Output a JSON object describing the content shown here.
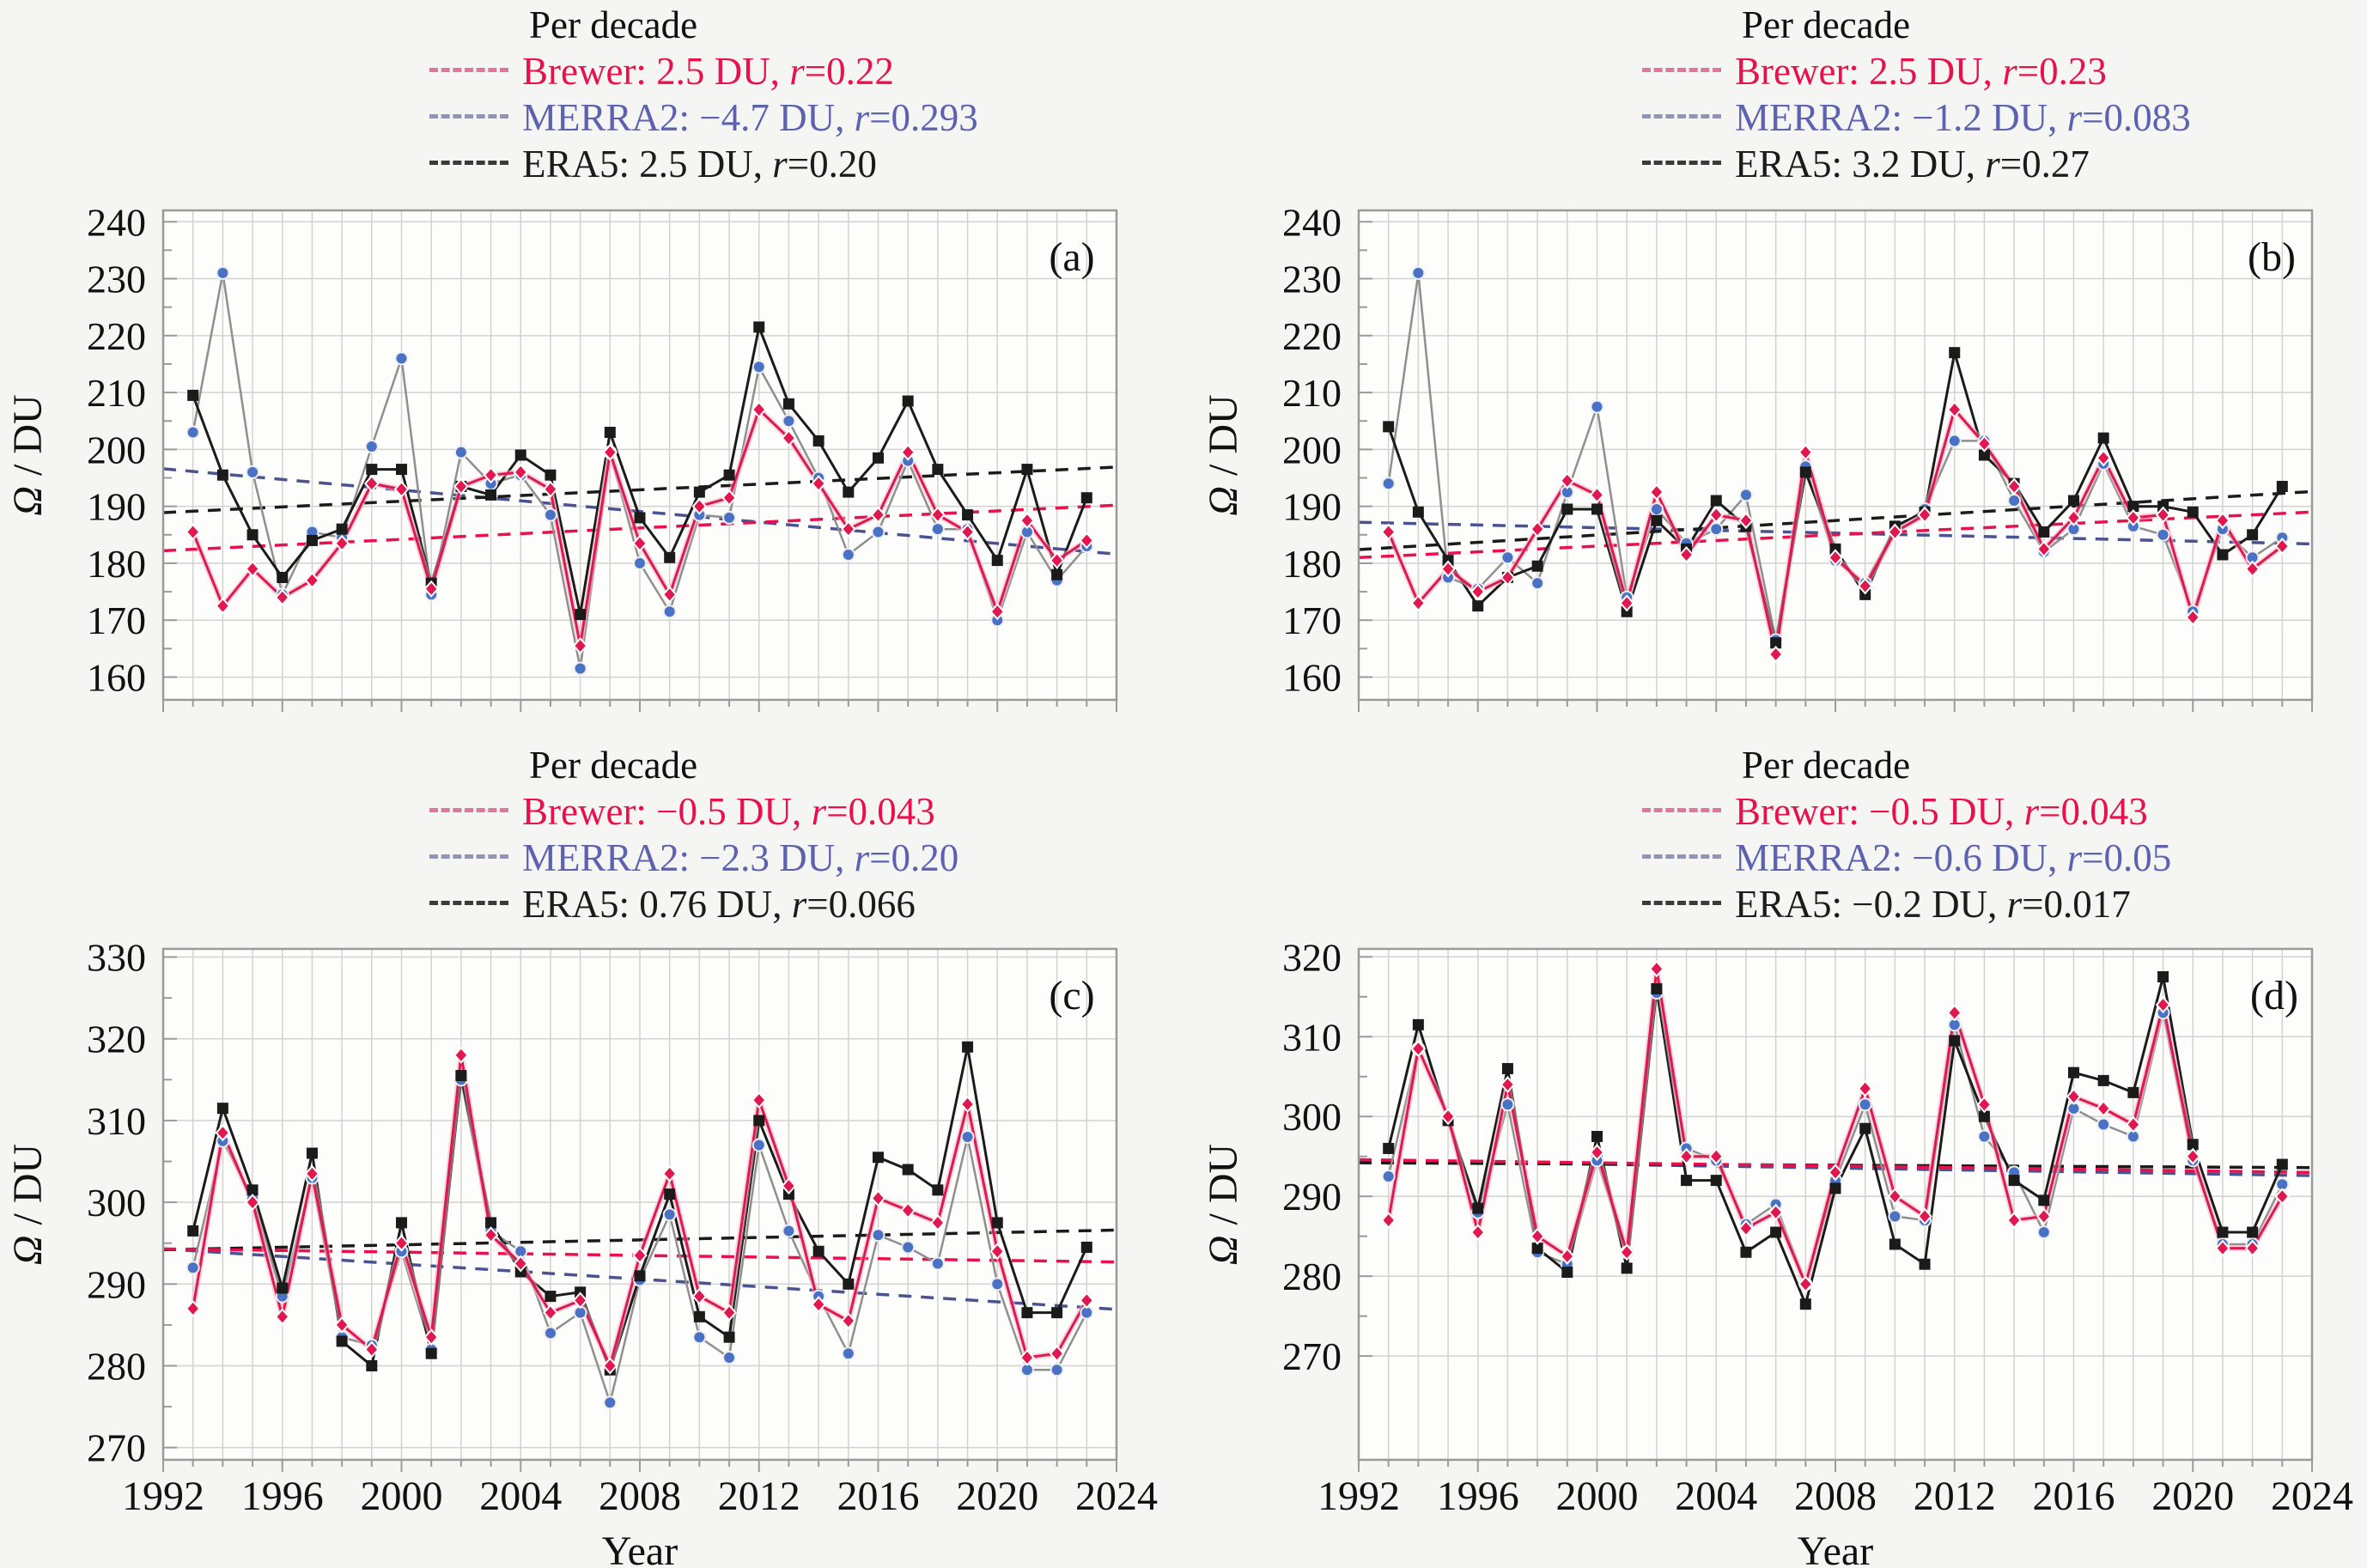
{
  "figure": {
    "background": "#f5f5f3",
    "plot_background": "#fdfdfc",
    "grid_color": "#d2d2d2",
    "frame_color": "#9a9a9a",
    "text_color": "#111111",
    "ylabel_omega": "Ω",
    "ylabel_rest": " / DU",
    "xlabel": "Year",
    "years": [
      1993,
      1994,
      1995,
      1996,
      1997,
      1998,
      1999,
      2000,
      2001,
      2002,
      2003,
      2004,
      2005,
      2006,
      2007,
      2008,
      2009,
      2010,
      2011,
      2012,
      2013,
      2014,
      2015,
      2016,
      2017,
      2018,
      2019,
      2020,
      2021,
      2022,
      2023
    ],
    "series_colors": {
      "brewer_line": "#dc1a4e",
      "brewer_halo": "#f5b5ca",
      "brewer_marker": "#e1174f",
      "merra2_line": "#8f8f8f",
      "merra2_marker": "#4a72c4",
      "era5_line": "#1b1b1b",
      "era5_marker": "#1b1b1b",
      "trend_brewer": "#e8114d",
      "trend_merra2": "#4a5390",
      "trend_era5": "#1b1b1b"
    }
  },
  "chart_data": [
    {
      "type": "line",
      "label": "(a)",
      "xlim": [
        1992,
        2024
      ],
      "ylim": [
        156,
        242
      ],
      "yticks": [
        160,
        170,
        180,
        190,
        200,
        210,
        220,
        230,
        240
      ],
      "xticks": [
        1992,
        1996,
        2000,
        2004,
        2008,
        2012,
        2016,
        2020,
        2024
      ],
      "legend": {
        "title": "Per decade",
        "entries": [
          {
            "series": "brewer",
            "text": "Brewer: 2.5 DU, ",
            "r": "r",
            "rv": "=0.22",
            "color": "#e8114d",
            "dash": "#e0779a"
          },
          {
            "series": "merra2",
            "text": "MERRA2: −4.7 DU, ",
            "r": "r",
            "rv": "=0.293",
            "color": "#5c61b0",
            "dash": "#9094b8"
          },
          {
            "series": "era5",
            "text": "ERA5: 2.5 DU, ",
            "r": "r",
            "rv": "=0.20",
            "color": "#1b1b1b",
            "dash": "#3a3a3a"
          }
        ]
      },
      "series": [
        {
          "name": "MERRA2",
          "key": "merra2",
          "values": [
            203,
            231,
            196,
            174.5,
            185.5,
            184.5,
            200.5,
            216,
            174.5,
            199.5,
            194,
            195.5,
            188.5,
            161.5,
            199.5,
            180,
            171.5,
            188.5,
            188,
            214.5,
            205,
            195,
            181.5,
            185.5,
            198,
            186,
            186,
            170,
            185.5,
            177,
            183
          ],
          "trend": [
            196.6,
            181.6
          ]
        },
        {
          "name": "ERA5",
          "key": "era5",
          "values": [
            209.5,
            195.5,
            185,
            177.5,
            184,
            186,
            196.5,
            196.5,
            176.5,
            193.5,
            192,
            199,
            195.5,
            171,
            203,
            188,
            181,
            192.5,
            195.5,
            221.5,
            208,
            201.5,
            192.5,
            198.5,
            208.5,
            196.5,
            188.5,
            180.5,
            196.5,
            178,
            191.5
          ],
          "trend": [
            188.9,
            196.9
          ]
        },
        {
          "name": "Brewer",
          "key": "brewer",
          "values": [
            185.5,
            172.5,
            179,
            174,
            177,
            183.5,
            194,
            193,
            175.5,
            193.5,
            195.5,
            196,
            193,
            165.5,
            199.5,
            183.5,
            174.5,
            190,
            191.5,
            207,
            202,
            194,
            186,
            188.5,
            199.5,
            188.5,
            185.5,
            171.5,
            187.5,
            180.5,
            184
          ],
          "trend": [
            182.2,
            190.2
          ]
        }
      ]
    },
    {
      "type": "line",
      "label": "(b)",
      "xlim": [
        1992,
        2024
      ],
      "ylim": [
        156,
        242
      ],
      "yticks": [
        160,
        170,
        180,
        190,
        200,
        210,
        220,
        230,
        240
      ],
      "xticks": [
        1992,
        1996,
        2000,
        2004,
        2008,
        2012,
        2016,
        2020,
        2024
      ],
      "legend": {
        "title": "Per decade",
        "entries": [
          {
            "series": "brewer",
            "text": "Brewer: 2.5 DU, ",
            "r": "r",
            "rv": "=0.23",
            "color": "#e8114d",
            "dash": "#e0779a"
          },
          {
            "series": "merra2",
            "text": "MERRA2: −1.2 DU, ",
            "r": "r",
            "rv": "=0.083",
            "color": "#5c61b0",
            "dash": "#9094b8"
          },
          {
            "series": "era5",
            "text": "ERA5: 3.2 DU, ",
            "r": "r",
            "rv": "=0.27",
            "color": "#1b1b1b",
            "dash": "#3a3a3a"
          }
        ]
      },
      "series": [
        {
          "name": "MERRA2",
          "key": "merra2",
          "values": [
            194,
            231,
            177.5,
            175.5,
            181,
            176.5,
            192.5,
            207.5,
            174,
            189.5,
            183.5,
            186,
            192,
            166.5,
            197,
            180.5,
            176.5,
            186,
            189.5,
            201.5,
            201.5,
            191,
            182,
            186,
            197.5,
            186.5,
            185,
            171.5,
            186,
            181,
            184.5
          ],
          "trend": [
            187.2,
            183.4
          ]
        },
        {
          "name": "ERA5",
          "key": "era5",
          "values": [
            204,
            189,
            180.5,
            172.5,
            177.5,
            179.5,
            189.5,
            189.5,
            171.5,
            187.5,
            182.5,
            191,
            186.5,
            166,
            196,
            182.5,
            174.5,
            186.5,
            189,
            217,
            199,
            194,
            185.5,
            191,
            202,
            190,
            190,
            189,
            181.5,
            185,
            193.5
          ],
          "trend": [
            182.4,
            192.6
          ]
        },
        {
          "name": "Brewer",
          "key": "brewer",
          "values": [
            185.5,
            173,
            179,
            175,
            177.5,
            186,
            194.5,
            192,
            173,
            192.5,
            181.5,
            188.5,
            187.5,
            164,
            199.5,
            181,
            176,
            185.5,
            188.5,
            207,
            201,
            193.5,
            182.5,
            188,
            198.5,
            188,
            188.5,
            170.5,
            187.5,
            179,
            183
          ],
          "trend": [
            181.0,
            189.0
          ]
        }
      ]
    },
    {
      "type": "line",
      "label": "(c)",
      "xlim": [
        1992,
        2024
      ],
      "ylim": [
        268.5,
        331
      ],
      "yticks": [
        270,
        280,
        290,
        300,
        310,
        320,
        330
      ],
      "xticks": [
        1992,
        1996,
        2000,
        2004,
        2008,
        2012,
        2016,
        2020,
        2024
      ],
      "legend": {
        "title": "Per decade",
        "entries": [
          {
            "series": "brewer",
            "text": "Brewer: −0.5 DU, ",
            "r": "r",
            "rv": "=0.043",
            "color": "#e8114d",
            "dash": "#e0779a"
          },
          {
            "series": "merra2",
            "text": "MERRA2: −2.3 DU, ",
            "r": "r",
            "rv": "=0.20",
            "color": "#5c61b0",
            "dash": "#9094b8"
          },
          {
            "series": "era5",
            "text": "ERA5: 0.76 DU, ",
            "r": "r",
            "rv": "=0.066",
            "color": "#1b1b1b",
            "dash": "#3a3a3a"
          }
        ]
      },
      "series": [
        {
          "name": "MERRA2",
          "key": "merra2",
          "values": [
            292,
            307.5,
            300.5,
            288.5,
            303,
            283.5,
            282.5,
            294,
            282,
            315,
            296.5,
            294,
            284,
            286.5,
            275.5,
            290.5,
            298.5,
            283.5,
            281,
            307,
            296.5,
            288.5,
            281.5,
            296,
            294.5,
            292.5,
            308,
            290,
            279.5,
            279.5,
            286.5
          ],
          "trend": [
            294.3,
            286.9
          ]
        },
        {
          "name": "ERA5",
          "key": "era5",
          "values": [
            296.5,
            311.5,
            301.5,
            289.5,
            306,
            283,
            280,
            297.5,
            281.5,
            315.5,
            297.5,
            291.5,
            288.5,
            289,
            279.5,
            291,
            301,
            286,
            283.5,
            310,
            301,
            294,
            290,
            305.5,
            304,
            301.5,
            319,
            297.5,
            286.5,
            286.5,
            294.5
          ],
          "trend": [
            294.2,
            296.6
          ]
        },
        {
          "name": "Brewer",
          "key": "brewer",
          "values": [
            287,
            308.5,
            300,
            286,
            303.5,
            285,
            282,
            295,
            283.5,
            318,
            296,
            292.5,
            286.5,
            288,
            280,
            293.5,
            303.5,
            288.5,
            286.5,
            312.5,
            302,
            287.5,
            285.5,
            300.5,
            299,
            297.5,
            312,
            294,
            281,
            281.5,
            288
          ],
          "trend": [
            294.3,
            292.7
          ]
        }
      ]
    },
    {
      "type": "line",
      "label": "(d)",
      "xlim": [
        1992,
        2024
      ],
      "ylim": [
        257,
        321
      ],
      "yticks": [
        270,
        280,
        290,
        300,
        310,
        320
      ],
      "xticks": [
        1992,
        1996,
        2000,
        2004,
        2008,
        2012,
        2016,
        2020,
        2024
      ],
      "legend": {
        "title": "Per decade",
        "entries": [
          {
            "series": "brewer",
            "text": "Brewer: −0.5 DU, ",
            "r": "r",
            "rv": "=0.043",
            "color": "#e8114d",
            "dash": "#e0779a"
          },
          {
            "series": "merra2",
            "text": "MERRA2: −0.6 DU, ",
            "r": "r",
            "rv": "=0.05",
            "color": "#5c61b0",
            "dash": "#9094b8"
          },
          {
            "series": "era5",
            "text": "ERA5: −0.2 DU, ",
            "r": "r",
            "rv": "=0.017",
            "color": "#1b1b1b",
            "dash": "#3a3a3a"
          }
        ]
      },
      "series": [
        {
          "name": "MERRA2",
          "key": "merra2",
          "values": [
            292.5,
            308.5,
            300,
            288,
            301.5,
            283,
            281.5,
            294.5,
            283,
            315.5,
            296,
            294.5,
            286.5,
            289,
            279,
            292,
            301.5,
            287.5,
            287,
            311.5,
            297.5,
            293,
            285.5,
            301,
            299,
            297.5,
            313,
            294.5,
            284,
            284,
            291.5
          ],
          "trend": [
            294.5,
            292.6
          ]
        },
        {
          "name": "ERA5",
          "key": "era5",
          "values": [
            296,
            311.5,
            299.5,
            288.5,
            306,
            283.5,
            280.5,
            297.5,
            281,
            316,
            292,
            292,
            283,
            285.5,
            276.5,
            291,
            298.5,
            284,
            281.5,
            309.5,
            300,
            292,
            289.5,
            305.5,
            304.5,
            303,
            317.5,
            296.5,
            285.5,
            285.5,
            294
          ],
          "trend": [
            294.2,
            293.6
          ]
        },
        {
          "name": "Brewer",
          "key": "brewer",
          "values": [
            287,
            308.5,
            300,
            285.5,
            304,
            285,
            282.5,
            295.5,
            283,
            318.5,
            295,
            295,
            286,
            288,
            279,
            293,
            303.5,
            290,
            287.5,
            313,
            301.5,
            287,
            287.5,
            302.5,
            301,
            299,
            314,
            295,
            283.5,
            283.5,
            290
          ],
          "trend": [
            294.6,
            293.0
          ]
        }
      ]
    }
  ]
}
